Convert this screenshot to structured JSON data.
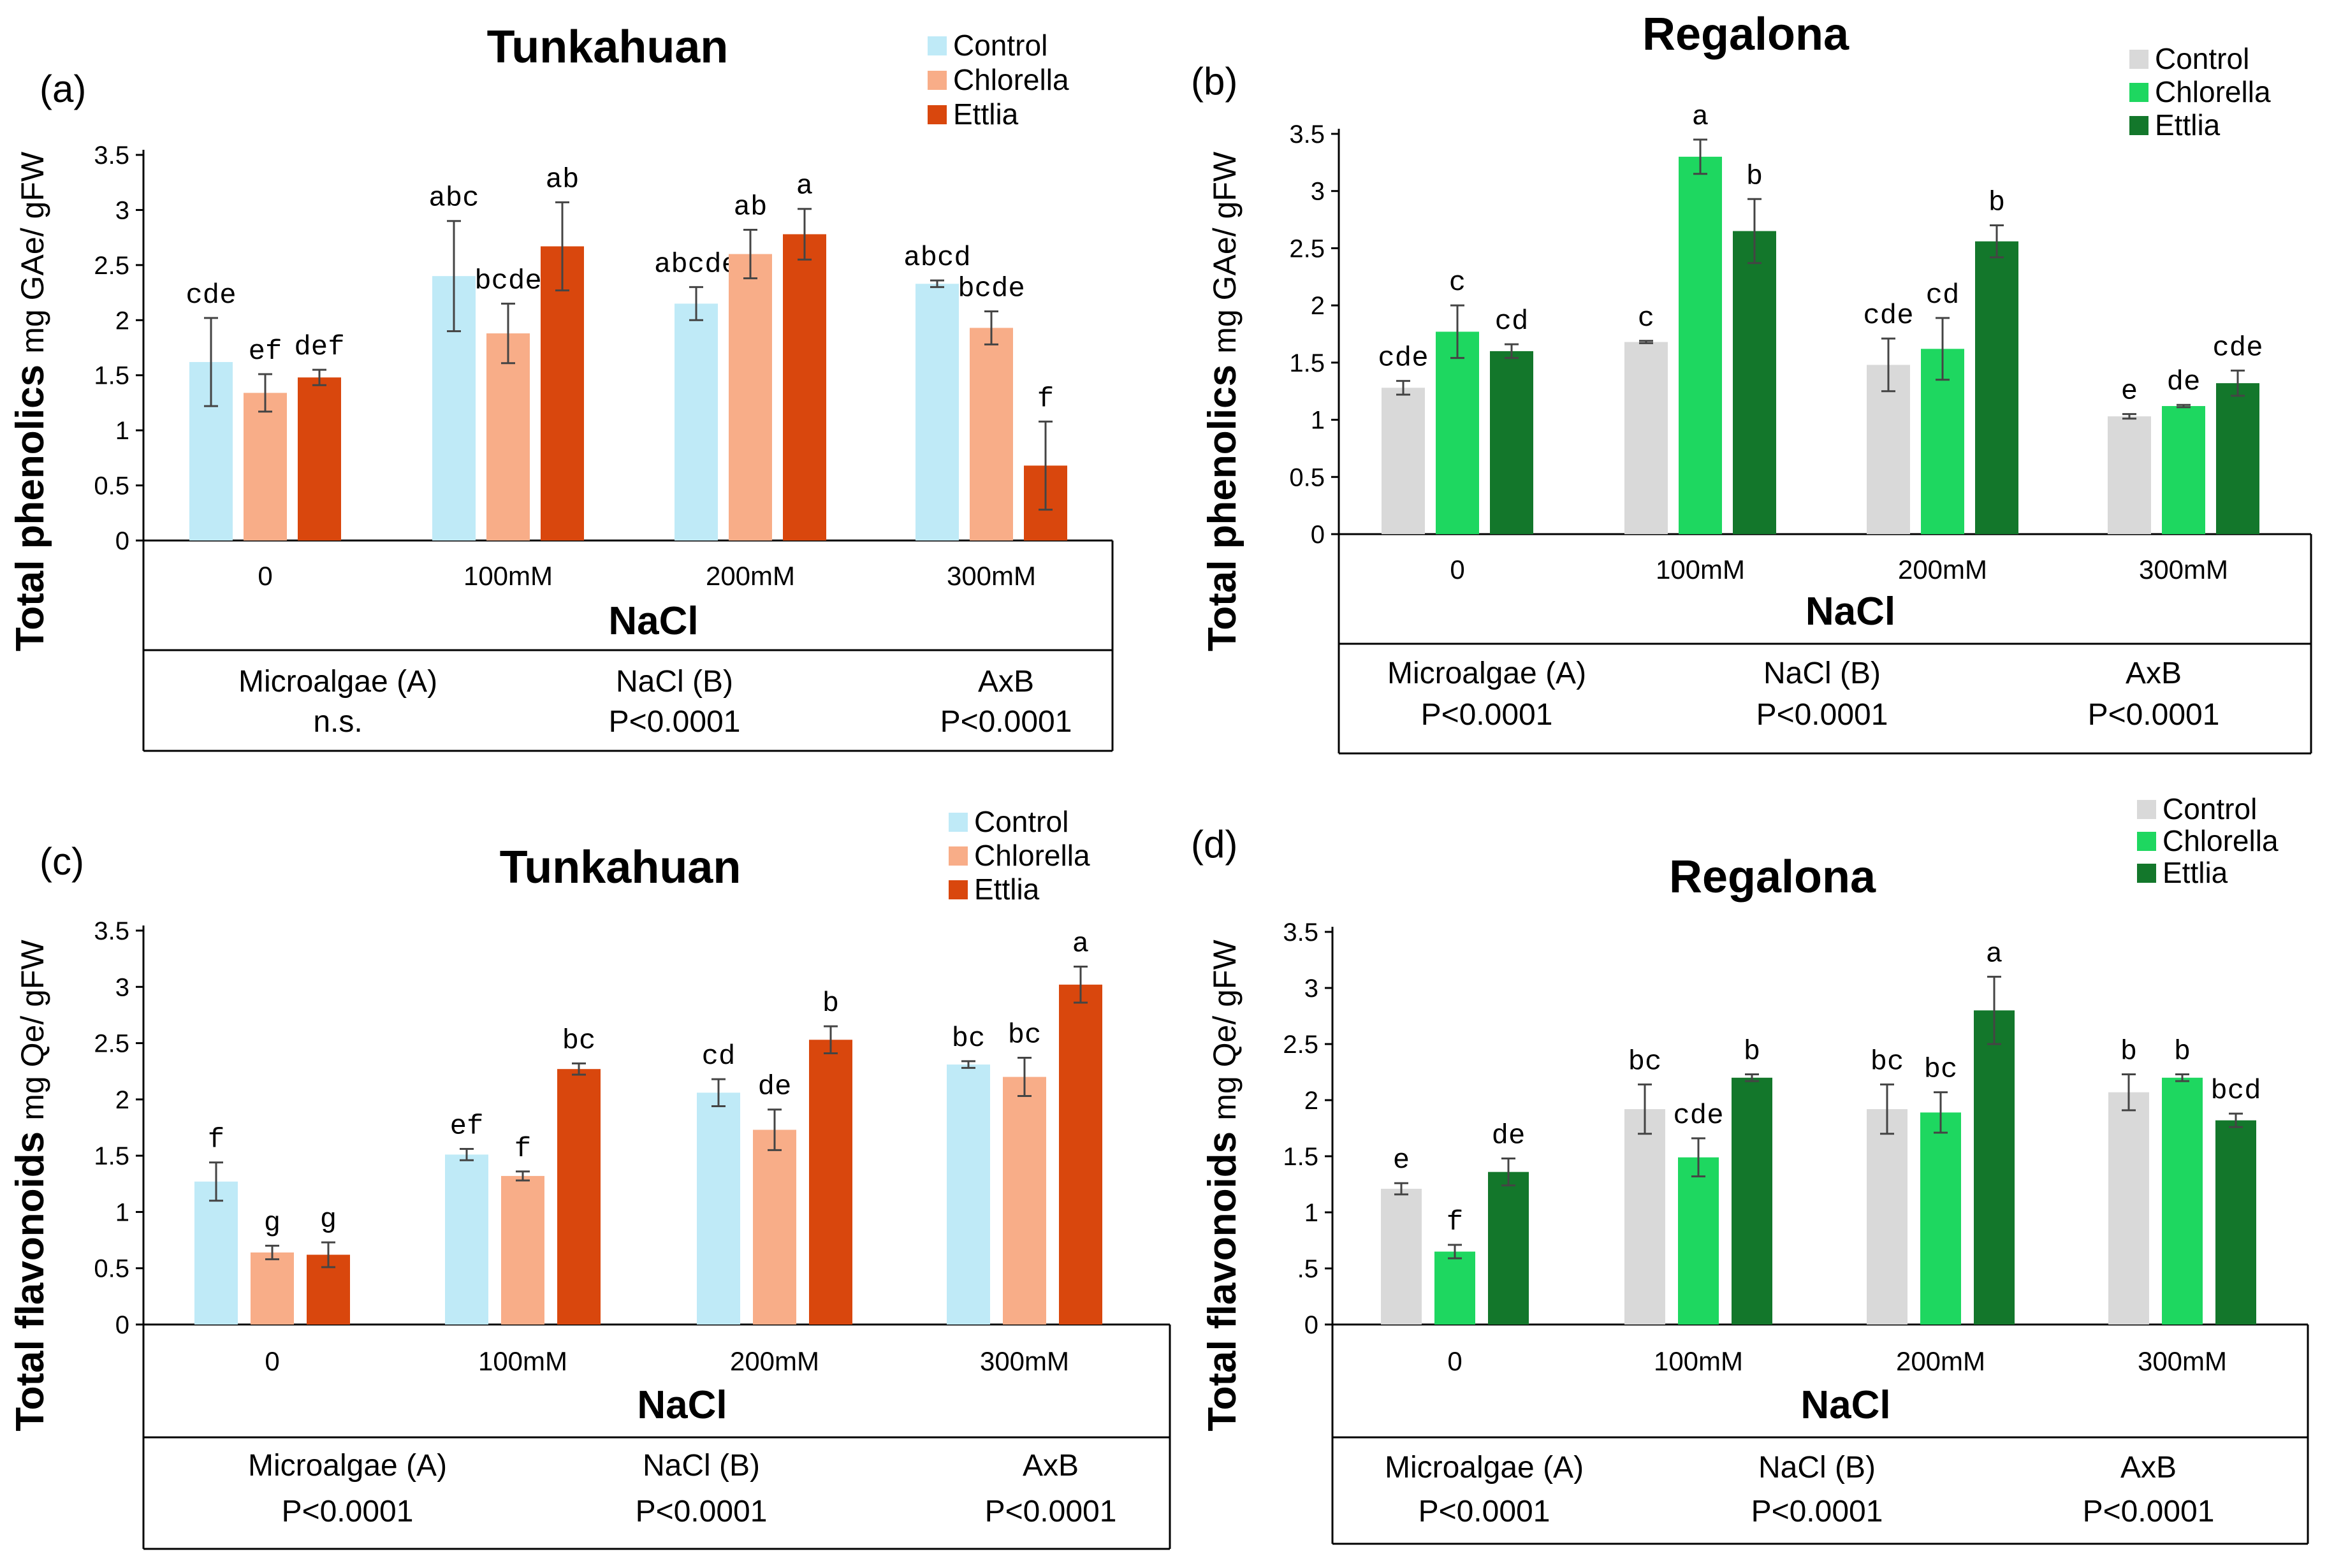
{
  "figure": {
    "panels": [
      "a",
      "b",
      "c",
      "d"
    ]
  },
  "colors": {
    "tunkahuan": [
      "#bfeaf7",
      "#f8ad88",
      "#d9470d"
    ],
    "regalona": [
      "#d9d9d9",
      "#1ed760",
      "#13772b"
    ],
    "axis": "#000000",
    "errorbar": "#444444"
  },
  "chart_data": [
    {
      "panel": "(a)",
      "type": "bar",
      "title": "Tunkahuan",
      "ylabel_main": "Total phenolics",
      "ylabel_unit": "mg GAe/ gFW",
      "xlabel": "NaCl",
      "ylim": [
        0,
        3.5
      ],
      "yticks": [
        "0",
        "0.5",
        "1",
        "1.5",
        "2",
        "2.5",
        "3",
        "3.5"
      ],
      "categories": [
        "0",
        "100mM",
        "200mM",
        "300mM"
      ],
      "series": [
        {
          "name": "Control",
          "values": [
            1.62,
            2.4,
            2.15,
            2.33
          ],
          "errors": [
            0.4,
            0.5,
            0.15,
            0.03
          ]
        },
        {
          "name": "Chlorella",
          "values": [
            1.34,
            1.88,
            2.6,
            1.93
          ],
          "errors": [
            0.17,
            0.27,
            0.22,
            0.15
          ]
        },
        {
          "name": "Ettlia",
          "values": [
            1.48,
            2.67,
            2.78,
            0.68
          ],
          "errors": [
            0.07,
            0.4,
            0.23,
            0.4
          ]
        }
      ],
      "letters": [
        [
          "cde",
          "ef",
          "def"
        ],
        [
          "abc",
          "bcde",
          "ab"
        ],
        [
          "abcde",
          "ab",
          "a"
        ],
        [
          "abcd",
          "bcde",
          "f"
        ]
      ],
      "stats": {
        "headers": [
          "Microalgae (A)",
          "NaCl (B)",
          "AxB"
        ],
        "values": [
          "n.s.",
          "P<0.0001",
          "P<0.0001"
        ]
      }
    },
    {
      "panel": "(b)",
      "type": "bar",
      "title": "Regalona",
      "ylabel_main": "Total phenolics",
      "ylabel_unit": "mg GAe/ gFW",
      "xlabel": "NaCl",
      "ylim": [
        0,
        3.5
      ],
      "yticks": [
        "0",
        "0.5",
        "1",
        "1.5",
        "2",
        "2.5",
        "3",
        "3.5"
      ],
      "categories": [
        "0",
        "100mM",
        "200mM",
        "300mM"
      ],
      "series": [
        {
          "name": "Control",
          "values": [
            1.28,
            1.68,
            1.48,
            1.03
          ],
          "errors": [
            0.06,
            0.01,
            0.23,
            0.02
          ]
        },
        {
          "name": "Chlorella",
          "values": [
            1.77,
            3.3,
            1.62,
            1.12
          ],
          "errors": [
            0.23,
            0.15,
            0.27,
            0.01
          ]
        },
        {
          "name": "Ettlia",
          "values": [
            1.6,
            2.65,
            2.56,
            1.32
          ],
          "errors": [
            0.06,
            0.28,
            0.14,
            0.11
          ]
        }
      ],
      "letters": [
        [
          "cde",
          "c",
          "cd"
        ],
        [
          "c",
          "a",
          "b"
        ],
        [
          "cde",
          "cd",
          "b"
        ],
        [
          "e",
          "de",
          "cde"
        ]
      ],
      "stats": {
        "headers": [
          "Microalgae (A)",
          "NaCl (B)",
          "AxB"
        ],
        "values": [
          "P<0.0001",
          "P<0.0001",
          "P<0.0001"
        ]
      }
    },
    {
      "panel": "(c)",
      "type": "bar",
      "title": "Tunkahuan",
      "ylabel_main": "Total flavonoids",
      "ylabel_unit": "mg Qe/ gFW",
      "xlabel": "NaCl",
      "ylim": [
        0,
        3.5
      ],
      "yticks": [
        "0",
        "0.5",
        "1",
        "1.5",
        "2",
        "2.5",
        "3",
        "3.5"
      ],
      "categories": [
        "0",
        "100mM",
        "200mM",
        "300mM"
      ],
      "series": [
        {
          "name": "Control",
          "values": [
            1.27,
            1.51,
            2.06,
            2.31
          ],
          "errors": [
            0.17,
            0.05,
            0.12,
            0.03
          ]
        },
        {
          "name": "Chlorella",
          "values": [
            0.64,
            1.32,
            1.73,
            2.2
          ],
          "errors": [
            0.06,
            0.04,
            0.18,
            0.17
          ]
        },
        {
          "name": "Ettlia",
          "values": [
            0.62,
            2.27,
            2.53,
            3.02
          ],
          "errors": [
            0.11,
            0.05,
            0.12,
            0.16
          ]
        }
      ],
      "letters": [
        [
          "f",
          "g",
          "g"
        ],
        [
          "ef",
          "f",
          "bc"
        ],
        [
          "cd",
          "de",
          "b"
        ],
        [
          "bc",
          "bc",
          "a"
        ]
      ],
      "stats": {
        "headers": [
          "Microalgae (A)",
          "NaCl (B)",
          "AxB"
        ],
        "values": [
          "P<0.0001",
          "P<0.0001",
          "P<0.0001"
        ]
      }
    },
    {
      "panel": "(d)",
      "type": "bar",
      "title": "Regalona",
      "ylabel_main": "Total flavonoids",
      "ylabel_unit": "mg Qe/ gFW",
      "xlabel": "NaCl",
      "ylim": [
        0,
        3.5
      ],
      "yticks": [
        "0",
        ".5",
        "1",
        "1.5",
        "2",
        "2.5",
        "3",
        "3.5"
      ],
      "categories": [
        "0",
        "100mM",
        "200mM",
        "300mM"
      ],
      "series": [
        {
          "name": "Control",
          "values": [
            1.21,
            1.92,
            1.92,
            2.07
          ],
          "errors": [
            0.05,
            0.22,
            0.22,
            0.16
          ]
        },
        {
          "name": "Chlorella",
          "values": [
            0.65,
            1.49,
            1.89,
            2.2
          ],
          "errors": [
            0.06,
            0.17,
            0.18,
            0.03
          ]
        },
        {
          "name": "Ettlia",
          "values": [
            1.36,
            2.2,
            2.8,
            1.82
          ],
          "errors": [
            0.12,
            0.03,
            0.3,
            0.06
          ]
        }
      ],
      "letters": [
        [
          "e",
          "f",
          "de"
        ],
        [
          "bc",
          "cde",
          "b"
        ],
        [
          "bc",
          "bc",
          "a"
        ],
        [
          "b",
          "b",
          "bcd"
        ]
      ],
      "stats": {
        "headers": [
          "Microalgae (A)",
          "NaCl (B)",
          "AxB"
        ],
        "values": [
          "P<0.0001",
          "P<0.0001",
          "P<0.0001"
        ]
      }
    }
  ]
}
